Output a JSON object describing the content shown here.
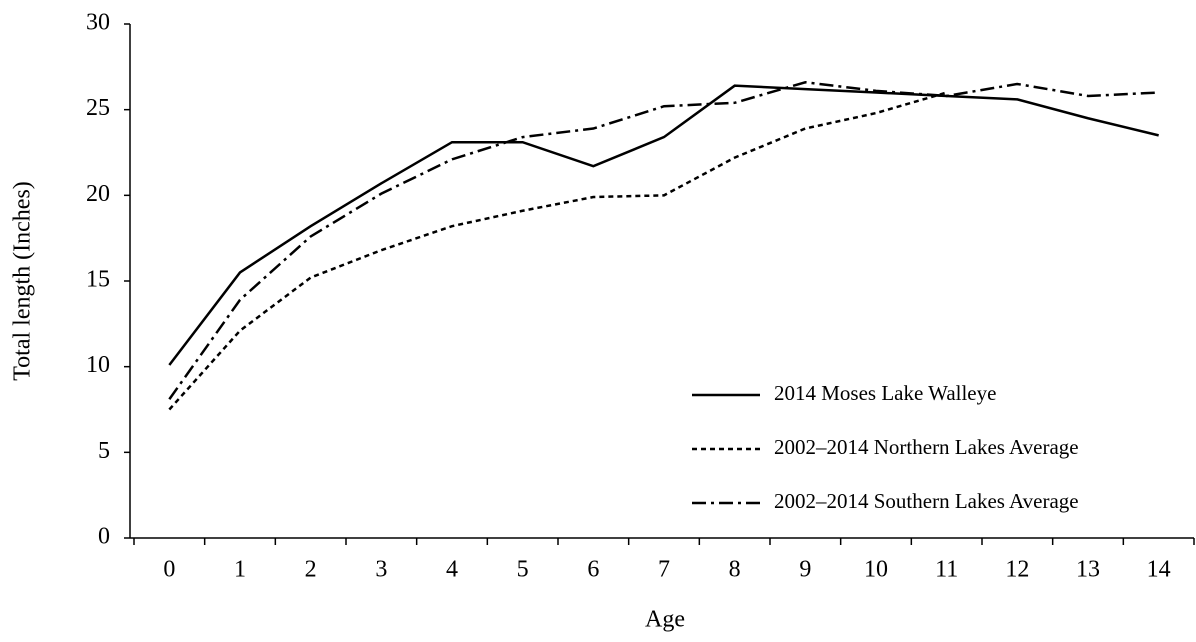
{
  "chart_data": {
    "type": "line",
    "x_label": "Age",
    "y_label": "Total length (Inches)",
    "categories": [
      "0",
      "1",
      "2",
      "3",
      "4",
      "5",
      "6",
      "7",
      "8",
      "9",
      "10",
      "11",
      "12",
      "13",
      "14"
    ],
    "ylim": [
      0,
      30
    ],
    "yticks": [
      0,
      5,
      10,
      15,
      20,
      25,
      30
    ],
    "grid": false,
    "legend": "lower right",
    "series": [
      {
        "name": "2014 Moses Lake Walleye",
        "color": "#000000",
        "dash": "none",
        "values": [
          10.1,
          15.5,
          18.2,
          20.7,
          23.1,
          23.1,
          21.7,
          23.4,
          26.4,
          26.2,
          26.0,
          25.8,
          25.6,
          24.5,
          23.5
        ]
      },
      {
        "name": "2002–2014 Northern Lakes Average",
        "color": "#000000",
        "dash": "5 4",
        "values": [
          7.5,
          12.1,
          15.2,
          16.8,
          18.2,
          19.1,
          19.9,
          20.0,
          22.2,
          23.9,
          24.8,
          26.0,
          null,
          null,
          null
        ]
      },
      {
        "name": "2002–2014 Southern Lakes Average",
        "color": "#000000",
        "dash": "14 5 3 5",
        "values": [
          8.1,
          13.9,
          17.6,
          20.1,
          22.1,
          23.4,
          23.9,
          25.2,
          25.4,
          26.6,
          26.1,
          25.8,
          26.5,
          25.8,
          26.0
        ]
      }
    ]
  }
}
